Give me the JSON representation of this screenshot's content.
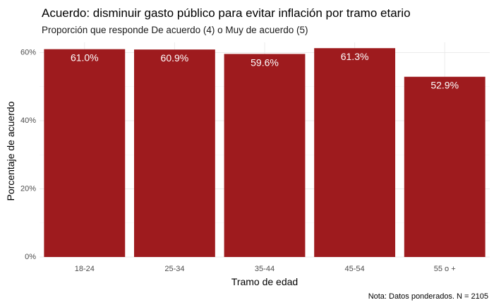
{
  "chart_data": {
    "type": "bar",
    "title": "Acuerdo: disminuir gasto público para evitar inflación por tramo etario",
    "subtitle": "Proporción que responde De acuerdo (4) o Muy de acuerdo (5)",
    "xlabel": "Tramo de edad",
    "ylabel": "Porcentaje de acuerdo",
    "caption": "Nota: Datos ponderados. N = 2105",
    "categories": [
      "18-24",
      "25-34",
      "35-44",
      "45-54",
      "55 o +"
    ],
    "values": [
      61.0,
      60.9,
      59.6,
      61.3,
      52.9
    ],
    "data_labels": [
      "61.0%",
      "60.9%",
      "59.6%",
      "61.3%",
      "52.9%"
    ],
    "ylim": [
      0,
      63
    ],
    "yticks": [
      0,
      20,
      40,
      60
    ],
    "ytick_labels": [
      "0%",
      "20%",
      "40%",
      "60%"
    ],
    "grid": true,
    "legend": "none",
    "bar_color": "#9e1b1e",
    "label_color": "#ffffff"
  }
}
